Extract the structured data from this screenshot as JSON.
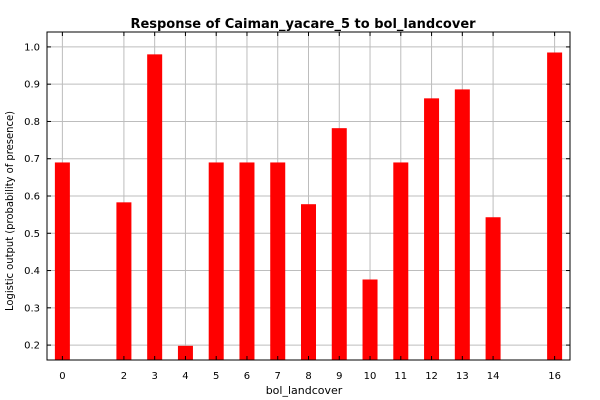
{
  "chart_data": {
    "type": "bar",
    "title": "Response of Caiman_yacare_5 to bol_landcover",
    "xlabel": "bol_landcover",
    "ylabel": "Logistic output (probability of presence)",
    "categories": [
      "0",
      "2",
      "3",
      "4",
      "5",
      "6",
      "7",
      "8",
      "9",
      "10",
      "11",
      "12",
      "13",
      "14",
      "16"
    ],
    "values": [
      0.69,
      0.583,
      0.98,
      0.198,
      0.69,
      0.69,
      0.69,
      0.578,
      0.782,
      0.376,
      0.69,
      0.862,
      0.886,
      0.543,
      0.985
    ],
    "ylim": [
      0.16,
      1.04
    ],
    "yticks": [
      0.2,
      0.3,
      0.4,
      0.5,
      0.6,
      0.7,
      0.8,
      0.9,
      1.0
    ],
    "ytick_labels": [
      "0.2",
      "0.3",
      "0.4",
      "0.5",
      "0.6",
      "0.7",
      "0.8",
      "0.9",
      "1.0"
    ],
    "xlim": [
      -0.5,
      16.5
    ],
    "grid": true,
    "bar_color": "#ff0000"
  }
}
